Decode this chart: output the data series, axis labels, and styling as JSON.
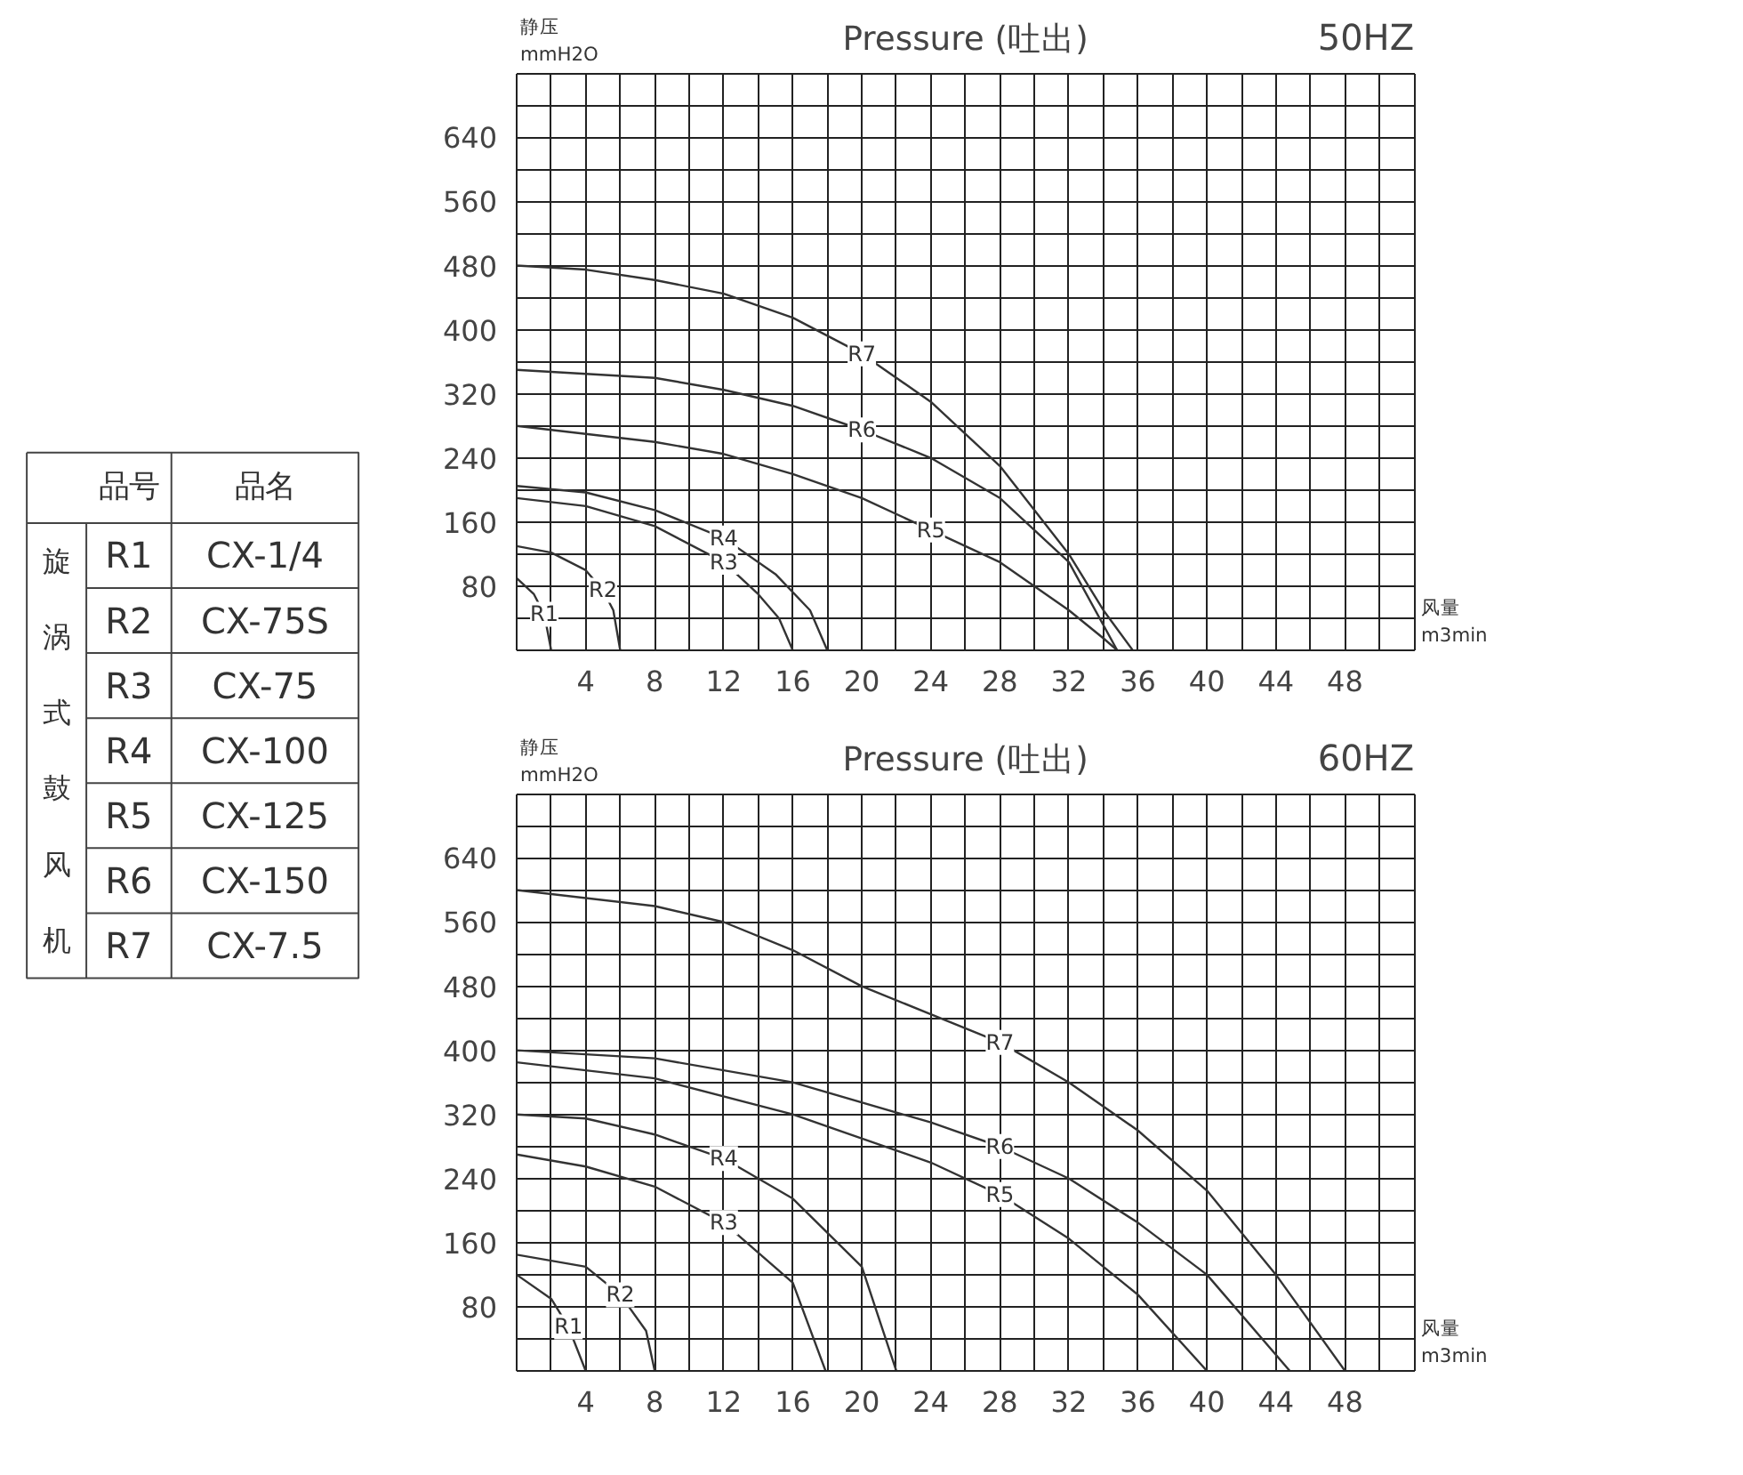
{
  "chart_data": [
    {
      "type": "other",
      "annotations": [
        "品号",
        "品名",
        "旋涡式鼓风机",
        "R1",
        "CX-1/4",
        "R2",
        "CX-75S",
        "R3",
        "CX-75",
        "R4",
        "CX-100",
        "R5",
        "CX-125",
        "R6",
        "CX-150",
        "R7",
        "CX-7.5"
      ]
    },
    {
      "type": "line",
      "title": "Pressure (吐出)",
      "subtitle": "50HZ",
      "xlabel": "风量\nm3min",
      "ylabel": "静压\nmmH2O",
      "grid": true,
      "xlim": [
        0,
        52
      ],
      "ylim": [
        0,
        720
      ],
      "xticks": [
        {
          "value": 0,
          "label": null
        },
        {
          "value": 2,
          "label": null
        },
        4,
        {
          "value": 6,
          "label": null
        },
        8,
        {
          "value": 10,
          "label": null
        },
        12,
        {
          "value": 14,
          "label": null
        },
        16,
        {
          "value": 18,
          "label": null
        },
        20,
        {
          "value": 22,
          "label": null
        },
        24,
        {
          "value": 26,
          "label": null
        },
        28,
        {
          "value": 30,
          "label": null
        },
        32,
        {
          "value": 34,
          "label": null
        },
        36,
        {
          "value": 38,
          "label": null
        },
        40,
        {
          "value": 42,
          "label": null
        },
        44,
        {
          "value": 46,
          "label": null
        },
        48,
        {
          "value": 50,
          "label": null
        },
        {
          "value": 52,
          "label": null
        }
      ],
      "yticks": [
        {
          "value": 0,
          "label": null
        },
        {
          "value": 40,
          "label": null
        },
        80,
        {
          "value": 120,
          "label": null
        },
        160,
        {
          "value": 200,
          "label": null
        },
        240,
        {
          "value": 280,
          "label": null
        },
        320,
        {
          "value": 360,
          "label": null
        },
        400,
        {
          "value": 440,
          "label": null
        },
        480,
        {
          "value": 520,
          "label": null
        },
        560,
        {
          "value": 600,
          "label": null
        },
        640,
        {
          "value": 680,
          "label": null
        },
        {
          "value": 720,
          "label": null
        }
      ],
      "series": [
        {
          "name": "R1",
          "color": "#333333",
          "x": [
            0,
            1,
            1.6,
            2
          ],
          "values": [
            90,
            70,
            45,
            0
          ]
        },
        {
          "name": "R2",
          "color": "#333333",
          "x": [
            0,
            2,
            4,
            5,
            5.6,
            6
          ],
          "values": [
            130,
            122,
            100,
            75,
            50,
            0
          ]
        },
        {
          "name": "R3",
          "color": "#333333",
          "x": [
            0,
            4,
            8,
            12,
            14,
            15.2,
            16
          ],
          "values": [
            190,
            180,
            155,
            110,
            70,
            40,
            0
          ]
        },
        {
          "name": "R4",
          "color": "#333333",
          "x": [
            0,
            4,
            8,
            12,
            15,
            17,
            18
          ],
          "values": [
            205,
            197,
            175,
            140,
            95,
            50,
            0
          ]
        },
        {
          "name": "R5",
          "color": "#333333",
          "x": [
            0,
            8,
            12,
            16,
            20,
            24,
            28,
            32,
            34,
            34.8
          ],
          "values": [
            280,
            260,
            245,
            220,
            190,
            150,
            110,
            50,
            15,
            0
          ]
        },
        {
          "name": "R6",
          "color": "#333333",
          "x": [
            0,
            8,
            12,
            16,
            20,
            24,
            28,
            32,
            34.8
          ],
          "values": [
            350,
            340,
            325,
            305,
            275,
            240,
            190,
            110,
            0
          ]
        },
        {
          "name": "R7",
          "color": "#333333",
          "x": [
            0,
            4,
            8,
            12,
            16,
            20,
            24,
            28,
            32,
            34,
            35.7
          ],
          "values": [
            480,
            475,
            462,
            445,
            415,
            370,
            310,
            230,
            120,
            50,
            0
          ]
        }
      ]
    },
    {
      "type": "line",
      "title": "Pressure (吐出)",
      "subtitle": "60HZ",
      "xlabel": "风量\nm3min",
      "ylabel": "静压\nmmH2O",
      "grid": true,
      "xlim": [
        0,
        52
      ],
      "ylim": [
        0,
        720
      ],
      "xticks": [
        {
          "value": 0,
          "label": null
        },
        {
          "value": 2,
          "label": null
        },
        4,
        {
          "value": 6,
          "label": null
        },
        8,
        {
          "value": 10,
          "label": null
        },
        12,
        {
          "value": 14,
          "label": null
        },
        16,
        {
          "value": 18,
          "label": null
        },
        20,
        {
          "value": 22,
          "label": null
        },
        24,
        {
          "value": 26,
          "label": null
        },
        28,
        {
          "value": 30,
          "label": null
        },
        32,
        {
          "value": 34,
          "label": null
        },
        36,
        {
          "value": 38,
          "label": null
        },
        40,
        {
          "value": 42,
          "label": null
        },
        44,
        {
          "value": 46,
          "label": null
        },
        48,
        {
          "value": 50,
          "label": null
        },
        {
          "value": 52,
          "label": null
        }
      ],
      "yticks": [
        {
          "value": 0,
          "label": null
        },
        {
          "value": 40,
          "label": null
        },
        80,
        {
          "value": 120,
          "label": null
        },
        160,
        {
          "value": 200,
          "label": null
        },
        240,
        {
          "value": 280,
          "label": null
        },
        320,
        {
          "value": 360,
          "label": null
        },
        400,
        {
          "value": 440,
          "label": null
        },
        480,
        {
          "value": 520,
          "label": null
        },
        560,
        {
          "value": 600,
          "label": null
        },
        640,
        {
          "value": 680,
          "label": null
        },
        {
          "value": 720,
          "label": null
        }
      ],
      "series": [
        {
          "name": "R1",
          "color": "#333333",
          "x": [
            0,
            2,
            3,
            4
          ],
          "values": [
            120,
            90,
            55,
            0
          ]
        },
        {
          "name": "R2",
          "color": "#333333",
          "x": [
            0,
            4,
            6,
            7.5,
            8
          ],
          "values": [
            145,
            130,
            95,
            50,
            0
          ]
        },
        {
          "name": "R3",
          "color": "#333333",
          "x": [
            0,
            4,
            8,
            12,
            16,
            17.9
          ],
          "values": [
            270,
            255,
            230,
            185,
            110,
            0
          ]
        },
        {
          "name": "R4",
          "color": "#333333",
          "x": [
            0,
            4,
            8,
            12,
            16,
            20,
            22
          ],
          "values": [
            320,
            315,
            295,
            265,
            215,
            130,
            0
          ]
        },
        {
          "name": "R5",
          "color": "#333333",
          "x": [
            0,
            8,
            16,
            24,
            28,
            32,
            36,
            40
          ],
          "values": [
            385,
            365,
            320,
            260,
            220,
            165,
            95,
            0
          ]
        },
        {
          "name": "R6",
          "color": "#333333",
          "x": [
            0,
            8,
            16,
            24,
            28,
            32,
            36,
            40,
            44.8
          ],
          "values": [
            400,
            390,
            360,
            310,
            280,
            240,
            185,
            120,
            0
          ]
        },
        {
          "name": "R7",
          "color": "#333333",
          "x": [
            0,
            8,
            12,
            16,
            20,
            24,
            28,
            32,
            36,
            40,
            44,
            48
          ],
          "values": [
            600,
            580,
            560,
            525,
            480,
            445,
            410,
            360,
            300,
            225,
            120,
            0
          ]
        }
      ]
    }
  ]
}
